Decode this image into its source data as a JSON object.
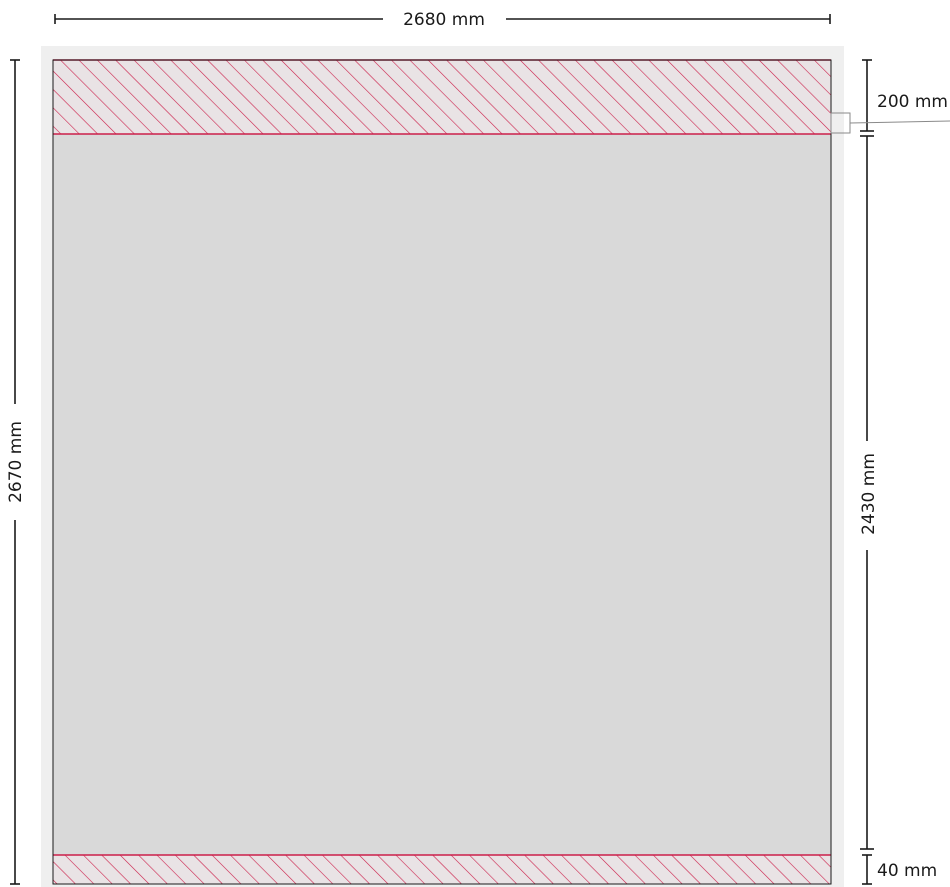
{
  "dimensions": {
    "overall_width": "2680 mm",
    "overall_height": "2670 mm",
    "top_band_height": "200 mm",
    "main_panel_height": "2430 mm",
    "bottom_band_height": "40 mm"
  },
  "colors": {
    "frame": "#efefef",
    "panel_fill": "#d9d9d9",
    "hatch": "#cc1f4a",
    "outline": "#1a1a1a",
    "leader": "#8a8a8a"
  }
}
